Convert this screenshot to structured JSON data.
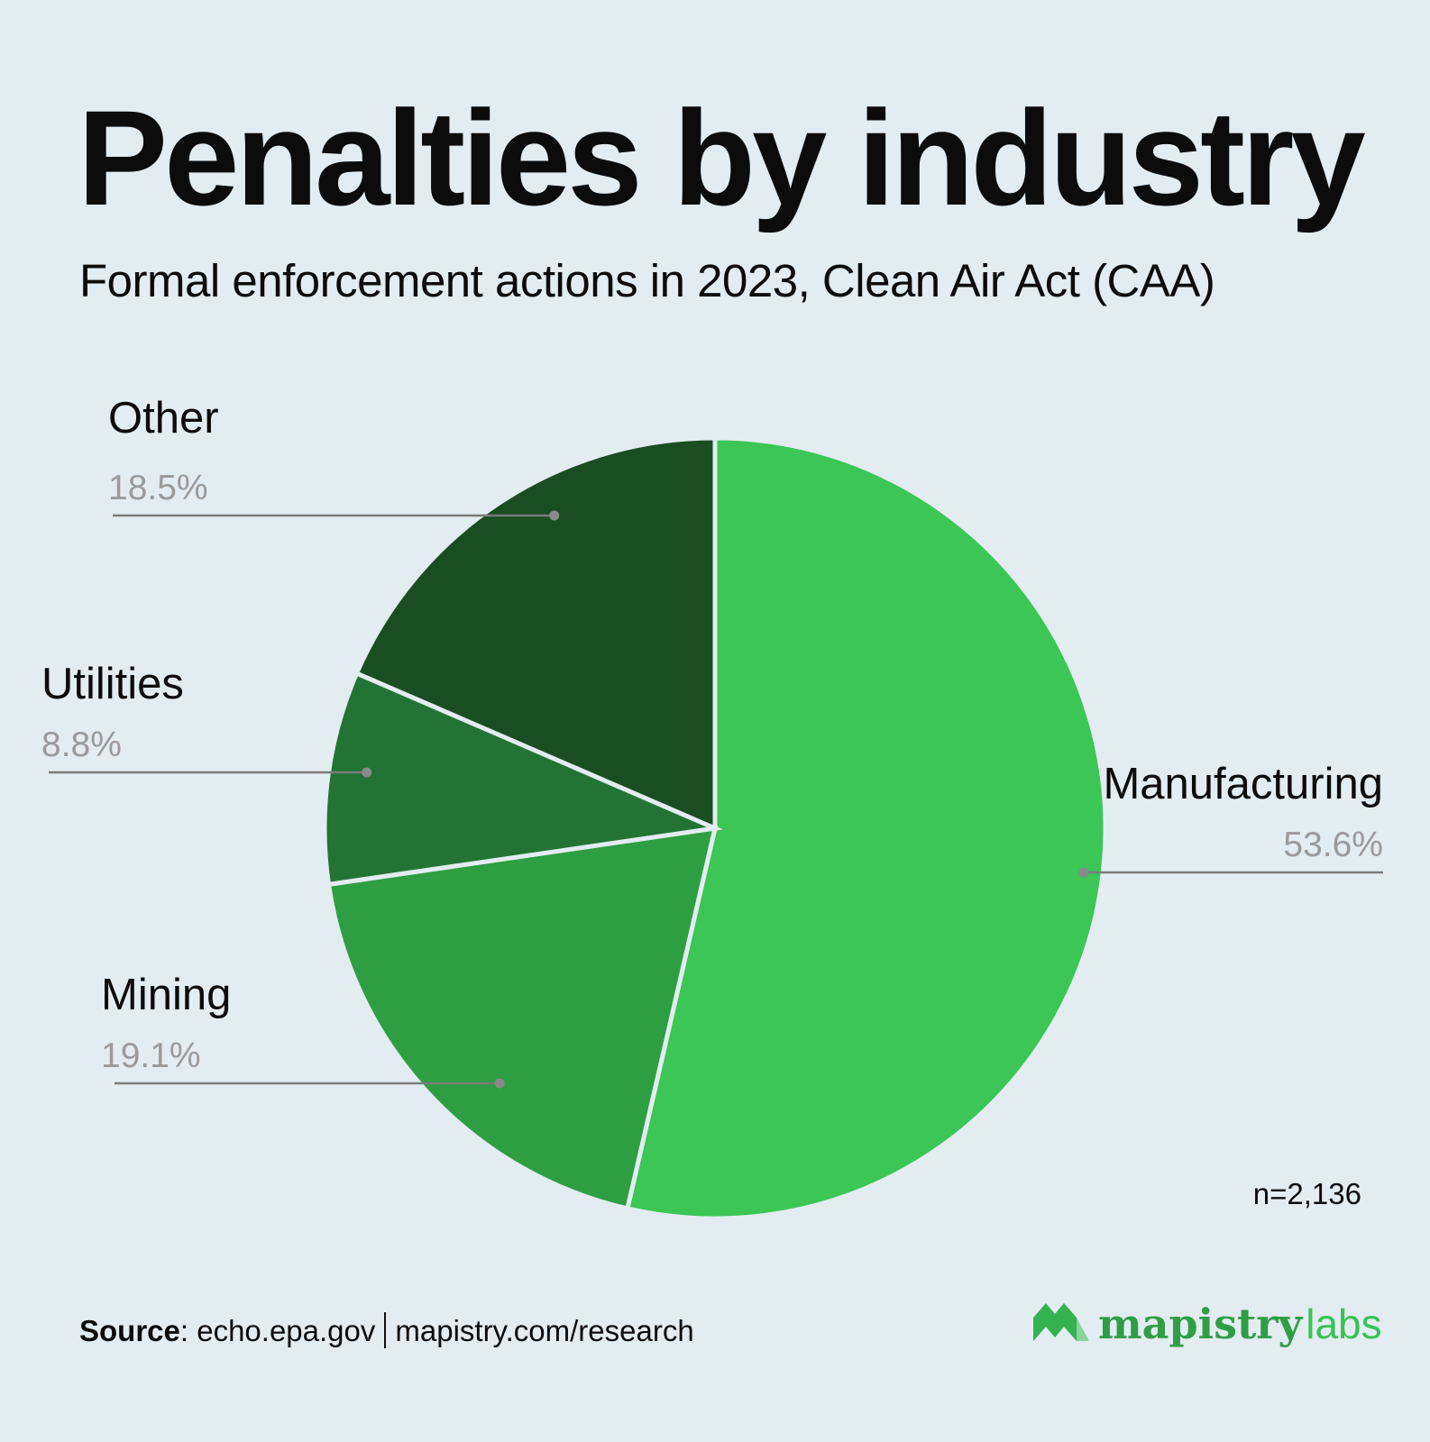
{
  "header": {
    "title": "Penalties by industry",
    "subtitle": "Formal enforcement actions in 2023, Clean Air Act (CAA)"
  },
  "chart_data": {
    "type": "pie",
    "title": "Penalties by industry",
    "subtitle": "Formal enforcement actions in 2023, Clean Air Act (CAA)",
    "categories": [
      "Manufacturing",
      "Mining",
      "Utilities",
      "Other"
    ],
    "values": [
      53.6,
      19.1,
      8.8,
      18.5
    ],
    "value_labels": [
      "53.6%",
      "19.1%",
      "8.8%",
      "18.5%"
    ],
    "colors": [
      "#3bc656",
      "#2e9e42",
      "#237434",
      "#1b4d22"
    ],
    "start_angle": "12 o'clock, clockwise",
    "legend": "none (direct callout labels)",
    "annotation": "n=2,136"
  },
  "footer": {
    "source_label": "Source",
    "source_text": ": echo.epa.gov",
    "source_url": "mapistry.com/research"
  },
  "brand": {
    "name": "mapistry",
    "suffix": "labs",
    "colors": {
      "primary": "#2f9e46",
      "light": "#39c257"
    }
  },
  "colors": {
    "background": "#e3ecf1",
    "label_text": "#0c0c0c",
    "value_text": "#9a9a9a",
    "leader_line": "#7b7b7b",
    "slice_border": "#e3ecf1"
  }
}
